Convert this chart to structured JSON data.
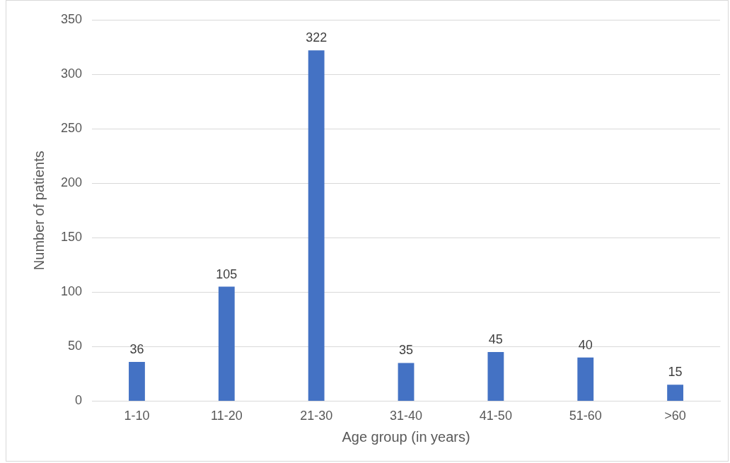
{
  "chart_data": {
    "type": "bar",
    "xlabel": "Age group (in years)",
    "ylabel": "Number of patients",
    "categories": [
      "1-10",
      "11-20",
      "21-30",
      "31-40",
      "41-50",
      "51-60",
      ">60"
    ],
    "values": [
      36,
      105,
      322,
      35,
      45,
      40,
      15
    ],
    "color": "#4472c4",
    "ylim": [
      0,
      350
    ],
    "yticks": [
      0,
      50,
      100,
      150,
      200,
      250,
      300,
      350
    ],
    "grid": "y",
    "legend": false,
    "data_labels": true
  }
}
